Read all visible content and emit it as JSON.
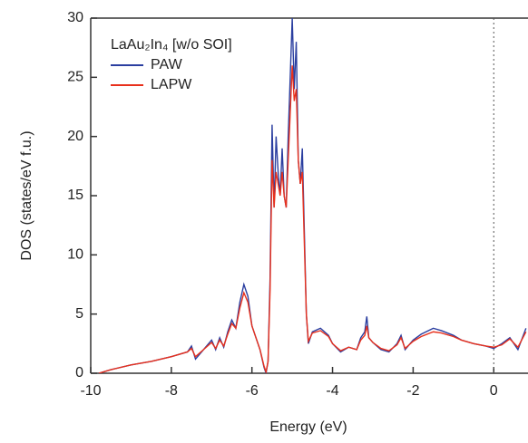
{
  "chart_data": {
    "type": "line",
    "x_label": "Energy (eV)",
    "y_label": "DOS (states/eV f.u.)",
    "legend_title": "LaAu₂In₄ [w/o SOI]",
    "legend_position": "upper left",
    "x": [
      -9.8,
      -9.5,
      -9,
      -8.5,
      -8,
      -7.6,
      -7.5,
      -7.4,
      -7.2,
      -7,
      -6.9,
      -6.8,
      -6.7,
      -6.6,
      -6.5,
      -6.4,
      -6.3,
      -6.2,
      -6.1,
      -6,
      -5.9,
      -5.8,
      -5.7,
      -5.65,
      -5.6,
      -5.55,
      -5.5,
      -5.45,
      -5.4,
      -5.35,
      -5.3,
      -5.25,
      -5.2,
      -5.15,
      -5.1,
      -5.05,
      -5,
      -4.95,
      -4.9,
      -4.85,
      -4.8,
      -4.75,
      -4.7,
      -4.65,
      -4.6,
      -4.5,
      -4.3,
      -4.1,
      -4,
      -3.8,
      -3.6,
      -3.4,
      -3.3,
      -3.2,
      -3.15,
      -3.1,
      -3,
      -2.8,
      -2.6,
      -2.4,
      -2.3,
      -2.2,
      -2,
      -1.8,
      -1.5,
      -1.3,
      -1,
      -0.8,
      -0.5,
      -0.2,
      0,
      0.2,
      0.4,
      0.6,
      0.8
    ],
    "series": [
      {
        "name": "PAW",
        "color": "#2b3fa0",
        "values": [
          0,
          0.3,
          0.7,
          1.0,
          1.4,
          1.8,
          2.3,
          1.2,
          2.0,
          2.8,
          2.0,
          3.0,
          2.2,
          3.5,
          4.5,
          3.8,
          6.0,
          7.5,
          6.5,
          4.0,
          3.0,
          2.0,
          0.5,
          0,
          1.0,
          8,
          21,
          14,
          20,
          17,
          15,
          19,
          15,
          14,
          20,
          25,
          30,
          24,
          28,
          18,
          16,
          19,
          12,
          5,
          2.5,
          3.5,
          3.8,
          3.2,
          2.5,
          1.8,
          2.2,
          2.0,
          3.0,
          3.5,
          4.8,
          3.0,
          2.6,
          2.0,
          1.8,
          2.5,
          3.2,
          2.0,
          2.8,
          3.3,
          3.8,
          3.6,
          3.2,
          2.8,
          2.5,
          2.3,
          2.1,
          2.5,
          3.0,
          2.0,
          3.8
        ]
      },
      {
        "name": "LAPW",
        "color": "#e8301c",
        "values": [
          0,
          0.3,
          0.7,
          1.0,
          1.4,
          1.8,
          2.1,
          1.4,
          2.0,
          2.6,
          2.1,
          2.8,
          2.3,
          3.3,
          4.2,
          3.8,
          5.5,
          6.8,
          6.0,
          4.0,
          3.0,
          2.0,
          0.6,
          0.1,
          1.0,
          7,
          18,
          14,
          17,
          16,
          15,
          17,
          15,
          14,
          18,
          22,
          26,
          23,
          24,
          18,
          16,
          17,
          11,
          5,
          2.7,
          3.4,
          3.6,
          3.1,
          2.5,
          1.9,
          2.2,
          2.0,
          2.8,
          3.2,
          4.0,
          3.0,
          2.6,
          2.1,
          1.9,
          2.4,
          3.0,
          2.1,
          2.7,
          3.1,
          3.5,
          3.4,
          3.1,
          2.8,
          2.5,
          2.3,
          2.2,
          2.4,
          2.9,
          2.2,
          3.5
        ]
      }
    ],
    "xlim": [
      -10,
      0.85
    ],
    "ylim": [
      0,
      30
    ],
    "xticks": [
      -10,
      -8,
      -6,
      -4,
      -2,
      0
    ],
    "yticks": [
      0,
      5,
      10,
      15,
      20,
      25,
      30
    ],
    "vlines": [
      0
    ]
  }
}
